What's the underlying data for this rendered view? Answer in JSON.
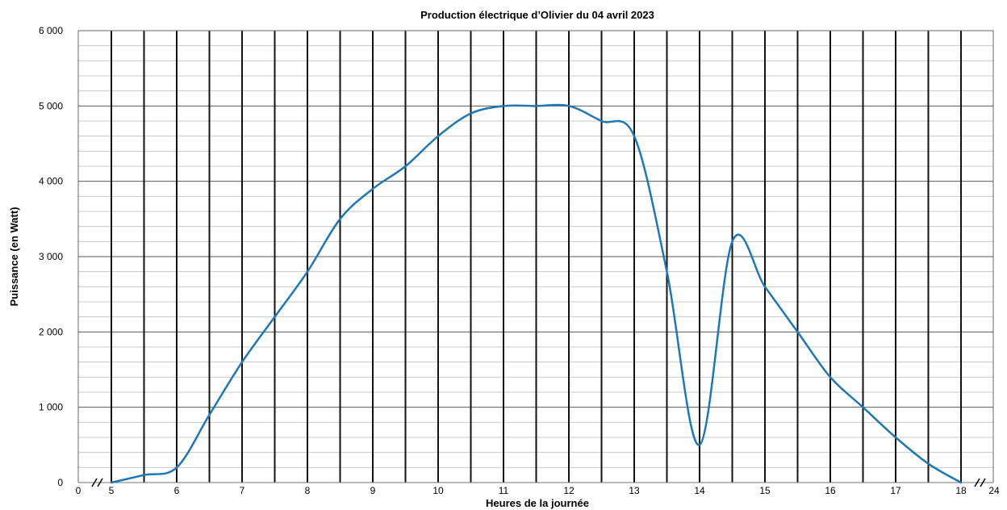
{
  "chart_data": {
    "type": "line",
    "title": "Production électrique d’Olivier du 04 avril 2023",
    "xlabel": "Heures de la journée",
    "ylabel": "Puissance (en Watt)",
    "xlim": [
      5,
      18
    ],
    "ylim": [
      0,
      6000
    ],
    "x_axis_break_labels": {
      "start": "0",
      "end": "24"
    },
    "xticks": [
      5,
      6,
      7,
      8,
      9,
      10,
      11,
      12,
      13,
      14,
      15,
      16,
      17,
      18
    ],
    "xtick_labels": [
      "5",
      "6",
      "7",
      "8",
      "9",
      "10",
      "11",
      "12",
      "13",
      "14",
      "15",
      "16",
      "17",
      "18"
    ],
    "yticks": [
      0,
      1000,
      2000,
      3000,
      4000,
      5000,
      6000
    ],
    "ytick_labels": [
      "0",
      "1 000",
      "2 000",
      "3 000",
      "4 000",
      "5 000",
      "6 000"
    ],
    "grid": true,
    "legend": "none",
    "series": [
      {
        "color": "#1f77b4",
        "x": [
          5,
          5.5,
          6,
          6.5,
          7,
          7.5,
          8,
          8.5,
          9,
          9.5,
          10,
          10.5,
          11,
          11.5,
          12,
          12.5,
          13,
          13.5,
          14,
          14.5,
          15,
          15.5,
          16,
          16.5,
          17,
          17.5,
          18
        ],
        "y": [
          0,
          100,
          200,
          900,
          1600,
          2200,
          2800,
          3500,
          3900,
          4200,
          4600,
          4900,
          5000,
          5000,
          5000,
          4800,
          4600,
          2800,
          500,
          3200,
          2600,
          2000,
          1400,
          1000,
          600,
          250,
          0
        ]
      }
    ]
  }
}
